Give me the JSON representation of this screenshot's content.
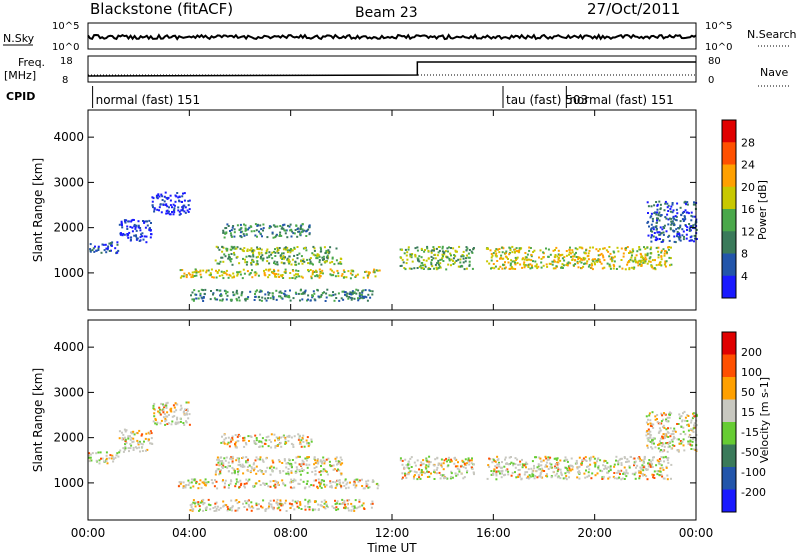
{
  "header": {
    "title": "Blackstone (fitACF)",
    "beam": "Beam 23",
    "date": "27/Oct/2011"
  },
  "left_labels": {
    "nsky": "N.Sky",
    "freq_line1": "Freq.",
    "freq_line2": "[MHz]",
    "cpid": "CPID"
  },
  "right_labels": {
    "nsearch": "N.Search",
    "nave": "Nave"
  },
  "nsky_axis": {
    "left_top": "10^5",
    "left_bottom": "10^0",
    "right_top": "10^5",
    "right_bottom": "10^0"
  },
  "freq_axis": {
    "left_top": "18",
    "left_bottom": "8",
    "right_top": "80",
    "right_bottom": "0"
  },
  "cpid_segments": [
    {
      "label": "normal (fast) 151",
      "start_h": 0.3
    },
    {
      "label": "tau (fast) 503",
      "start_h": 16.5
    },
    {
      "label": "normal (fast) 151",
      "start_h": 19.0
    }
  ],
  "x_axis": {
    "label": "Time UT",
    "ticks": [
      "00:00",
      "04:00",
      "08:00",
      "12:00",
      "16:00",
      "20:00",
      "00:00"
    ]
  },
  "power_panel": {
    "ylabel": "Slant Range [km]",
    "yticks": [
      "1000",
      "2000",
      "3000",
      "4000"
    ],
    "colorbar_label": "Power [dB]",
    "colorbar_ticks": [
      "4",
      "8",
      "12",
      "16",
      "20",
      "24",
      "28"
    ],
    "colors": [
      "#1a1aff",
      "#2255aa",
      "#3a7a5a",
      "#4aa84a",
      "#c8c800",
      "#ffa000",
      "#ff5000",
      "#e00000"
    ]
  },
  "velocity_panel": {
    "ylabel": "Slant Range [km]",
    "yticks": [
      "1000",
      "2000",
      "3000",
      "4000"
    ],
    "colorbar_label": "Velocity [m s-1]",
    "colorbar_ticks": [
      "200",
      "100",
      "50",
      "15",
      "-15",
      "-50",
      "-100",
      "-200"
    ],
    "colors": [
      "#1a1aff",
      "#2255aa",
      "#3a7a5a",
      "#66cc33",
      "#c8c8c0",
      "#ffa000",
      "#ff5000",
      "#e00000"
    ]
  },
  "chart_data": {
    "type": "heatmap",
    "title": "Blackstone (fitACF)",
    "xlabel": "Time UT",
    "ylabel": "Slant Range [km]",
    "xlim_hours": [
      0,
      24
    ],
    "ylim_km": [
      180,
      4600
    ],
    "echo_regions": [
      {
        "t": [
          0.0,
          1.2
        ],
        "r": [
          1450,
          1700
        ],
        "power_db": 8
      },
      {
        "t": [
          1.2,
          2.5
        ],
        "r": [
          1700,
          2200
        ],
        "power_db": 4
      },
      {
        "t": [
          2.5,
          4.0
        ],
        "r": [
          2300,
          2800
        ],
        "power_db": 6
      },
      {
        "t": [
          4.0,
          11.2
        ],
        "r": [
          400,
          650
        ],
        "power_db": 12
      },
      {
        "t": [
          3.5,
          11.5
        ],
        "r": [
          900,
          1100
        ],
        "power_db": 20
      },
      {
        "t": [
          5.0,
          10.0
        ],
        "r": [
          1200,
          1600
        ],
        "power_db": 16
      },
      {
        "t": [
          5.2,
          8.8
        ],
        "r": [
          1800,
          2100
        ],
        "power_db": 12
      },
      {
        "t": [
          12.3,
          15.2
        ],
        "r": [
          1100,
          1600
        ],
        "power_db": 16
      },
      {
        "t": [
          15.7,
          23.0
        ],
        "r": [
          1100,
          1600
        ],
        "power_db": 20
      },
      {
        "t": [
          22.0,
          24.0
        ],
        "r": [
          1700,
          2600
        ],
        "power_db": 8
      }
    ]
  }
}
